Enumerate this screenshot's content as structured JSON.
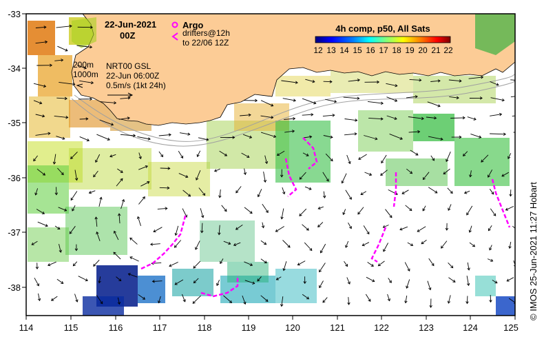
{
  "map": {
    "date_title": "22-Jun-2021",
    "time_title": "00Z",
    "legend": {
      "argo_label": "Argo",
      "drifters_label": "drifters@12h",
      "drifters_sub": "to 22/06 12Z",
      "argo_color": "#ff00ff",
      "drifter_color": "#ff00ff"
    },
    "colorbar": {
      "title": "4h comp, p50, All Sats",
      "ticks": [
        "12",
        "13",
        "14",
        "15",
        "16",
        "17",
        "18",
        "19",
        "20",
        "21",
        "22"
      ],
      "colors": [
        "#00007f",
        "#0000ff",
        "#007fff",
        "#00ffff",
        "#7fff7f",
        "#ffff00",
        "#ff7f00",
        "#ff0000",
        "#7f0000"
      ]
    },
    "annotations": {
      "contour_200": "200m",
      "contour_1000": "1000m",
      "product": "NRT00 GSL",
      "product_time": "22-Jun 06:00Z",
      "scale_text": "0.5m/s (1kt 24h)"
    },
    "credit": "© IMOS 25-Jun-2021 11:27 Hobart",
    "x_axis": {
      "ticks": [
        "114",
        "115",
        "116",
        "117",
        "118",
        "119",
        "120",
        "121",
        "122",
        "123",
        "124",
        "125"
      ]
    },
    "y_axis": {
      "ticks": [
        "-33",
        "-34",
        "-35",
        "-36",
        "-37",
        "-38"
      ]
    },
    "colors": {
      "land": "#fccc96",
      "ocean": "#ffffff",
      "current_arrow": "#000000",
      "isobath": "#a0a0a0"
    }
  }
}
